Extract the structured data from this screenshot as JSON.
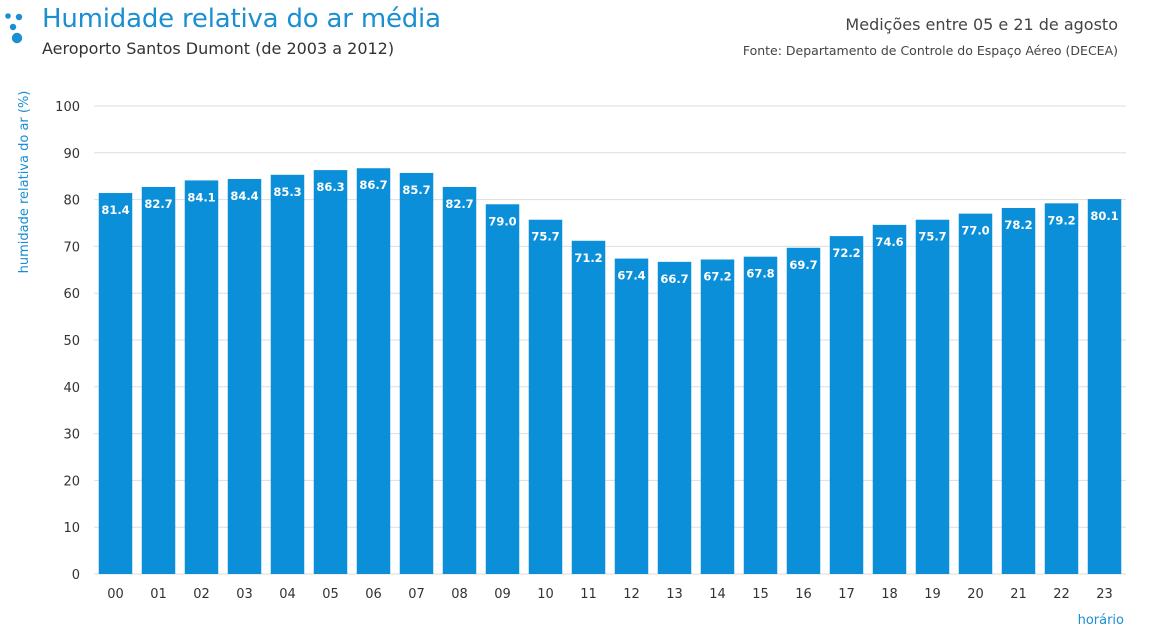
{
  "header": {
    "title": "Humidade relativa do ar média",
    "subtitle": "Aeroporto Santos Dumont (de 2003 a 2012)",
    "period": "Medições entre 05 e 21 de agosto",
    "source": "Fonte: Departamento de Controle do Espaço Aéreo (DECEA)"
  },
  "colors": {
    "bar": "#0a8fd8",
    "title": "#1a8fd1",
    "grid": "#dddddd"
  },
  "chart_data": {
    "type": "bar",
    "title": "Humidade relativa do ar média",
    "subtitle": "Aeroporto Santos Dumont (de 2003 a 2012)",
    "xlabel": "horário",
    "ylabel": "humidade relativa do ar (%)",
    "ylim": [
      0,
      100
    ],
    "yticks": [
      0,
      10,
      20,
      30,
      40,
      50,
      60,
      70,
      80,
      90,
      100
    ],
    "grid": true,
    "categories": [
      "00",
      "01",
      "02",
      "03",
      "04",
      "05",
      "06",
      "07",
      "08",
      "09",
      "10",
      "11",
      "12",
      "13",
      "14",
      "15",
      "16",
      "17",
      "18",
      "19",
      "20",
      "21",
      "22",
      "23"
    ],
    "values": [
      81.4,
      82.7,
      84.1,
      84.4,
      85.3,
      86.3,
      86.7,
      85.7,
      82.7,
      79.0,
      75.7,
      71.2,
      67.4,
      66.7,
      67.2,
      67.8,
      69.7,
      72.2,
      74.6,
      75.7,
      77.0,
      78.2,
      79.2,
      80.1
    ],
    "value_labels": [
      "81.4",
      "82.7",
      "84.1",
      "84.4",
      "85.3",
      "86.3",
      "86.7",
      "85.7",
      "82.7",
      "79.0",
      "75.7",
      "71.2",
      "67.4",
      "66.7",
      "67.2",
      "67.8",
      "69.7",
      "72.2",
      "74.6",
      "75.7",
      "77.0",
      "78.2",
      "79.2",
      "80.1"
    ]
  }
}
